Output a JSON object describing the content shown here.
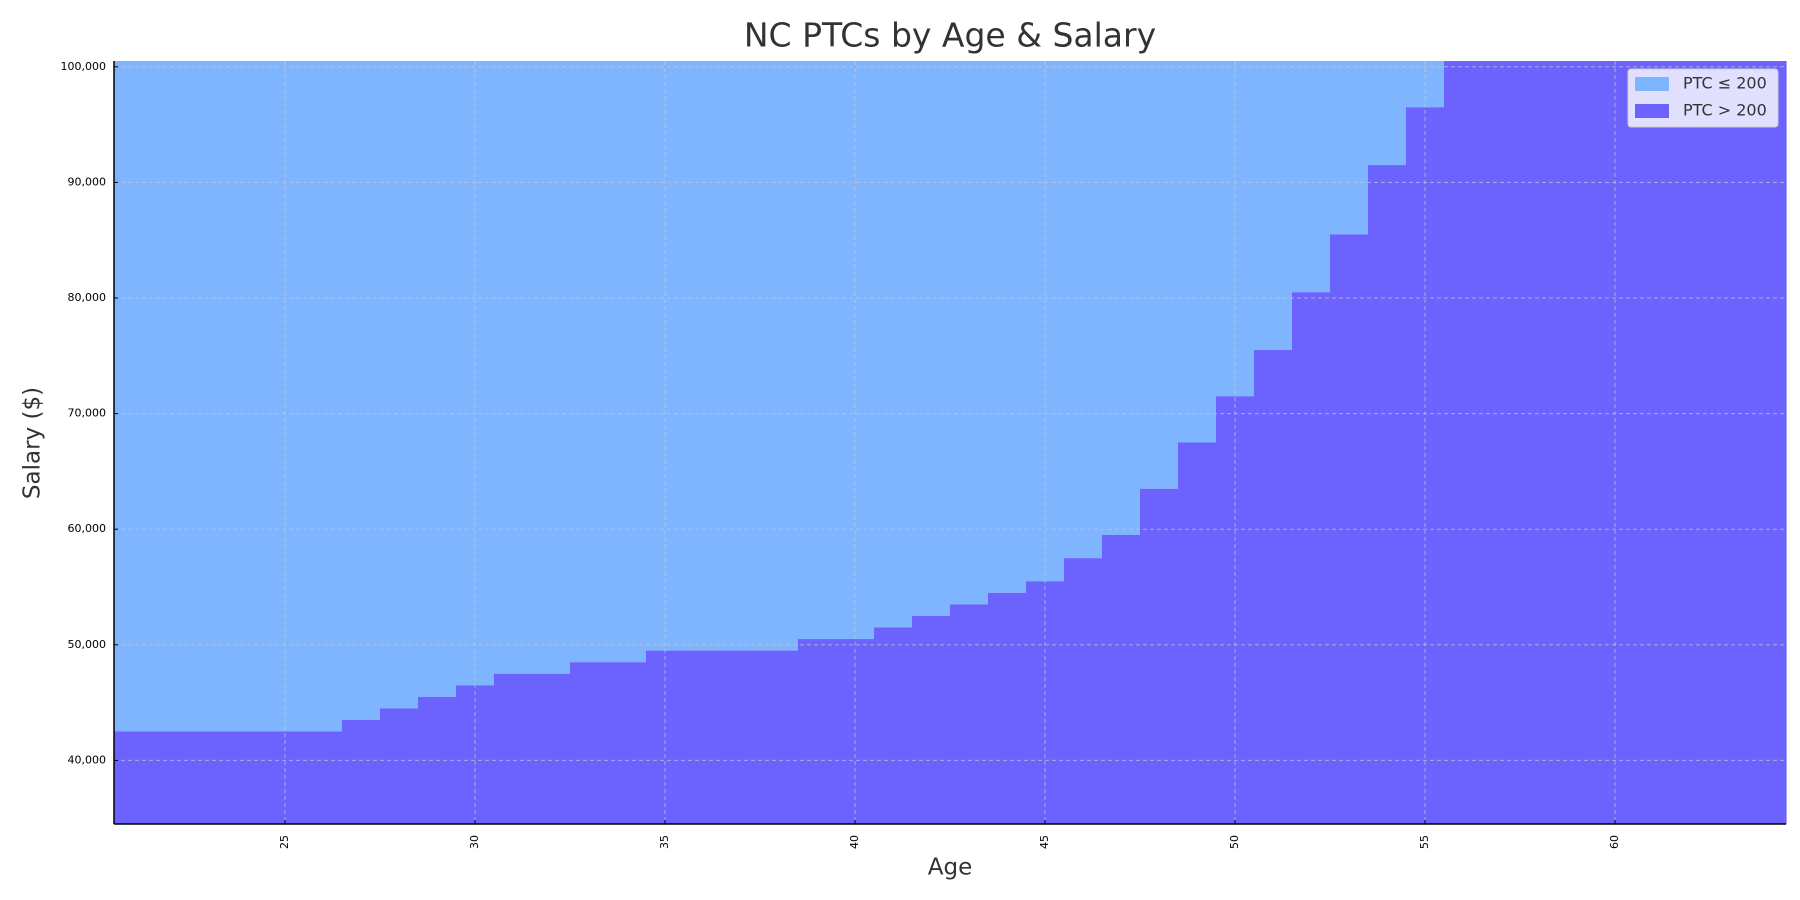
{
  "chart_data": {
    "type": "step-area",
    "title": "NC PTCs by Age & Salary",
    "x_label": "Age",
    "y_label": "Salary ($)",
    "x": [
      21,
      22,
      23,
      24,
      25,
      26,
      27,
      28,
      29,
      30,
      31,
      32,
      33,
      34,
      35,
      36,
      37,
      38,
      39,
      40,
      41,
      42,
      43,
      44,
      45,
      46,
      47,
      48,
      49,
      50,
      51,
      52,
      53,
      54,
      55,
      56,
      57,
      58,
      59,
      60,
      61,
      62,
      63,
      64
    ],
    "values": [
      42500,
      42500,
      42500,
      42500,
      42500,
      42500,
      43500,
      44500,
      45500,
      46500,
      47500,
      47500,
      48500,
      48500,
      49500,
      49500,
      49500,
      49500,
      50500,
      50500,
      51500,
      52500,
      53500,
      54500,
      55500,
      57500,
      59500,
      63500,
      67500,
      71500,
      75500,
      80500,
      85500,
      91500,
      96500,
      100500,
      100500,
      100500,
      100500,
      100500,
      100500,
      100500,
      100500,
      100500
    ],
    "series": [
      {
        "name": "PTC ≤ 200",
        "color": "#7fb5ff",
        "region": "above"
      },
      {
        "name": "PTC > 200",
        "color": "#6c63ff",
        "region": "below"
      }
    ],
    "xlim": [
      20.5,
      64.5
    ],
    "ylim": [
      34500,
      100500
    ],
    "xticks": [
      25,
      30,
      35,
      40,
      45,
      50,
      55,
      60
    ],
    "yticks": [
      {
        "value": 40000,
        "label": "40,000"
      },
      {
        "value": 50000,
        "label": "50,000"
      },
      {
        "value": 60000,
        "label": "60,000"
      },
      {
        "value": 70000,
        "label": "70,000"
      },
      {
        "value": 80000,
        "label": "80,000"
      },
      {
        "value": 90000,
        "label": "90,000"
      },
      {
        "value": 100000,
        "label": "100,000"
      }
    ],
    "grid": true,
    "legend": "upper right"
  }
}
